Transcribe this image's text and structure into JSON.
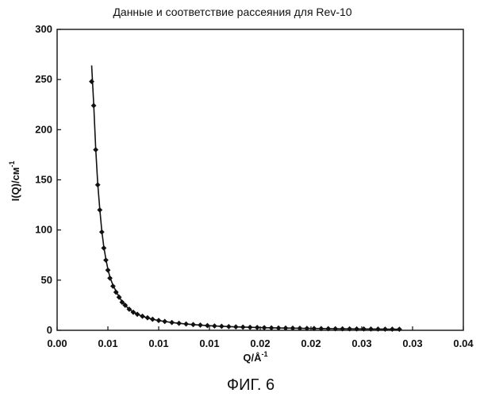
{
  "chart_data": {
    "type": "line",
    "title": "Данные и соответствие рассеяния для Rev-10",
    "xlabel": "Q/Å",
    "xlabel_superscript": "-1",
    "ylabel": "I(Q)/см",
    "ylabel_superscript": "-1",
    "xlim": [
      0.0,
      0.04
    ],
    "ylim": [
      0,
      300
    ],
    "x_ticks": [
      0.0,
      0.005,
      0.01,
      0.015,
      0.02,
      0.025,
      0.03,
      0.035,
      0.04
    ],
    "x_tick_labels": [
      "0.00",
      "0.01",
      "0.01",
      "0.01",
      "0.02",
      "0.02",
      "0.03",
      "0.03",
      "0.04"
    ],
    "y_ticks": [
      0,
      50,
      100,
      150,
      200,
      250,
      300
    ],
    "y_tick_labels": [
      "0",
      "50",
      "100",
      "150",
      "200",
      "250",
      "300"
    ],
    "grid": false,
    "legend": false,
    "series": [
      {
        "role": "data",
        "marker": "diamond",
        "x": [
          0.0034,
          0.0036,
          0.0038,
          0.004,
          0.0042,
          0.0044,
          0.0046,
          0.0048,
          0.005,
          0.0052,
          0.0055,
          0.0058,
          0.0061,
          0.0064,
          0.0067,
          0.0071,
          0.0075,
          0.0079,
          0.0084,
          0.0089,
          0.0094,
          0.01,
          0.0106,
          0.0113,
          0.012,
          0.0127,
          0.0134,
          0.0141,
          0.0148,
          0.0155,
          0.0162,
          0.0169,
          0.0176,
          0.0183,
          0.019,
          0.0197,
          0.0204,
          0.0211,
          0.0218,
          0.0225,
          0.0232,
          0.0239,
          0.0246,
          0.0253,
          0.026,
          0.0267,
          0.0274,
          0.0281,
          0.0288,
          0.0295,
          0.0302,
          0.0309,
          0.0316,
          0.0323,
          0.033,
          0.0337
        ],
        "y": [
          248,
          224,
          180,
          145,
          120,
          98,
          82,
          70,
          60,
          52,
          44,
          38,
          33,
          28,
          25,
          21,
          18,
          16,
          14,
          12.5,
          11,
          9.8,
          8.8,
          7.8,
          7.0,
          6.3,
          5.7,
          5.2,
          4.7,
          4.3,
          4.0,
          3.7,
          3.4,
          3.2,
          3.0,
          2.8,
          2.6,
          2.4,
          2.3,
          2.2,
          2.1,
          2.0,
          1.9,
          1.8,
          1.7,
          1.6,
          1.5,
          1.45,
          1.4,
          1.35,
          1.3,
          1.25,
          1.2,
          1.15,
          1.1,
          1.05
        ]
      },
      {
        "role": "fit",
        "marker": "none",
        "x": [
          0.0034,
          0.0036,
          0.0038,
          0.004,
          0.0042,
          0.0044,
          0.0046,
          0.0048,
          0.005,
          0.0052,
          0.0055,
          0.0058,
          0.0061,
          0.0064,
          0.0067,
          0.0071,
          0.0075,
          0.0079,
          0.0084,
          0.0089,
          0.0094,
          0.01,
          0.0106,
          0.0113,
          0.012,
          0.0127,
          0.0134,
          0.0141,
          0.0148,
          0.0155,
          0.0162,
          0.0169,
          0.0176,
          0.0183,
          0.019,
          0.0197,
          0.0204,
          0.0211,
          0.0218,
          0.0225,
          0.0232,
          0.0239,
          0.0246,
          0.0253,
          0.026,
          0.0267,
          0.0274,
          0.0281,
          0.0288,
          0.0295,
          0.0302,
          0.0309,
          0.0316,
          0.0323,
          0.033,
          0.0337
        ],
        "y": [
          264,
          226,
          181,
          146,
          121,
          99,
          83,
          71,
          61,
          53,
          45,
          39,
          33.5,
          28.5,
          25,
          21,
          18.2,
          16,
          14,
          12.4,
          11,
          9.8,
          8.8,
          7.8,
          7.0,
          6.3,
          5.7,
          5.2,
          4.7,
          4.3,
          4.0,
          3.7,
          3.4,
          3.2,
          3.0,
          2.8,
          2.6,
          2.4,
          2.3,
          2.2,
          2.1,
          2.0,
          1.9,
          1.8,
          1.7,
          1.6,
          1.5,
          1.45,
          1.4,
          1.35,
          1.3,
          1.25,
          1.2,
          1.15,
          1.1,
          1.05
        ]
      }
    ]
  },
  "caption": "ФИГ. 6"
}
